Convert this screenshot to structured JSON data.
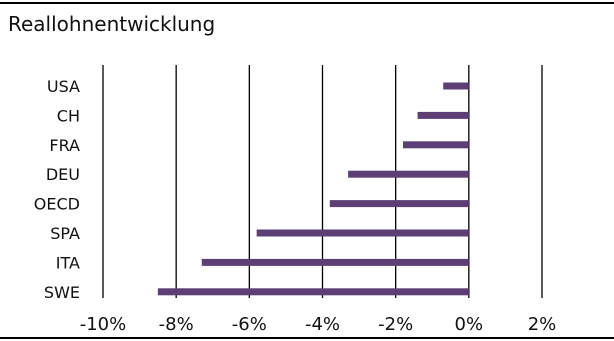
{
  "chart_data": {
    "type": "bar",
    "orientation": "horizontal",
    "title": "Reallohnentwicklung",
    "categories": [
      "USA",
      "CH",
      "FRA",
      "DEU",
      "OECD",
      "SPA",
      "ITA",
      "SWE"
    ],
    "values": [
      -0.7,
      -1.4,
      -1.8,
      -3.3,
      -3.8,
      -5.8,
      -7.3,
      -8.5
    ],
    "xlim": [
      -10,
      2
    ],
    "xticks": [
      -10,
      -8,
      -6,
      -4,
      -2,
      0,
      2
    ],
    "xtick_labels": [
      "-10%",
      "-8%",
      "-6%",
      "-4%",
      "-2%",
      "0%",
      "2%"
    ],
    "grid": "vertical",
    "legend": "none",
    "bar_color": "#5e3f75"
  }
}
